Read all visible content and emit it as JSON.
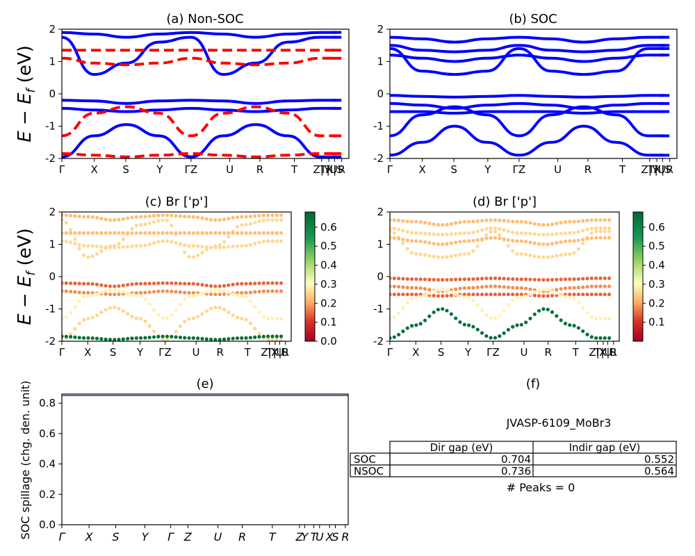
{
  "chart_data": [
    {
      "panel": "a",
      "type": "line",
      "title": "(a) Non-SOC",
      "ylabel": "E − E_f (eV)",
      "ylim": [
        -2,
        2
      ],
      "yticks": [
        -2,
        -1,
        0,
        1,
        2
      ],
      "xticks": [
        "Γ",
        "X",
        "S",
        "Y",
        "ΓZ",
        "U",
        "R",
        "T",
        "Z|Y",
        "T|U",
        "X|S",
        "R"
      ],
      "series": [
        {
          "spin": "up",
          "color": "#0000ff",
          "style": "solid",
          "x": [
            0,
            1,
            2,
            3,
            4,
            5,
            6,
            7,
            8
          ],
          "y": [
            -0.2,
            -0.22,
            -0.3,
            -0.22,
            -0.2,
            -0.22,
            -0.3,
            -0.22,
            -0.2
          ]
        },
        {
          "spin": "up",
          "color": "#0000ff",
          "style": "solid",
          "x": [
            0,
            1,
            2,
            3,
            4,
            5,
            6,
            7,
            8
          ],
          "y": [
            -0.45,
            -0.5,
            -0.55,
            -0.5,
            -0.45,
            -0.5,
            -0.55,
            -0.5,
            -0.45
          ]
        },
        {
          "spin": "up",
          "color": "#0000ff",
          "style": "solid",
          "x": [
            0,
            1,
            2,
            3,
            4,
            5,
            6,
            7,
            8
          ],
          "y": [
            -1.95,
            -1.3,
            -0.95,
            -1.3,
            -1.95,
            -1.3,
            -0.95,
            -1.3,
            -1.95
          ]
        },
        {
          "spin": "up",
          "color": "#0000ff",
          "style": "solid",
          "x": [
            0,
            1,
            2,
            3,
            4,
            5,
            6,
            7,
            8
          ],
          "y": [
            1.75,
            0.6,
            0.95,
            1.6,
            1.75,
            0.6,
            0.95,
            1.6,
            1.75
          ]
        },
        {
          "spin": "up",
          "color": "#0000ff",
          "style": "solid",
          "x": [
            0,
            1,
            2,
            3,
            4,
            5,
            6,
            7,
            8
          ],
          "y": [
            1.9,
            1.85,
            1.75,
            1.85,
            1.9,
            1.85,
            1.75,
            1.85,
            1.9
          ]
        },
        {
          "spin": "down",
          "color": "#ff0000",
          "style": "dashed",
          "x": [
            0,
            1,
            2,
            3,
            4,
            5,
            6,
            7,
            8
          ],
          "y": [
            1.1,
            0.95,
            0.9,
            0.95,
            1.1,
            0.95,
            0.9,
            0.95,
            1.1
          ]
        },
        {
          "spin": "down",
          "color": "#ff0000",
          "style": "dashed",
          "x": [
            0,
            1,
            2,
            3,
            4,
            5,
            6,
            7,
            8
          ],
          "y": [
            1.35,
            1.35,
            1.35,
            1.35,
            1.35,
            1.35,
            1.35,
            1.35,
            1.35
          ]
        },
        {
          "spin": "down",
          "color": "#ff0000",
          "style": "dashed",
          "x": [
            0,
            1,
            2,
            3,
            4,
            5,
            6,
            7,
            8
          ],
          "y": [
            -1.3,
            -0.6,
            -0.4,
            -0.6,
            -1.3,
            -0.6,
            -0.4,
            -0.6,
            -1.3
          ]
        },
        {
          "spin": "down",
          "color": "#ff0000",
          "style": "dashed",
          "x": [
            0,
            1,
            2,
            3,
            4,
            5,
            6,
            7,
            8
          ],
          "y": [
            -1.85,
            -1.9,
            -1.95,
            -1.9,
            -1.85,
            -1.9,
            -1.95,
            -1.9,
            -1.85
          ]
        }
      ]
    },
    {
      "panel": "b",
      "type": "line",
      "title": "(b) SOC",
      "ylim": [
        -2,
        2
      ],
      "yticks": [
        -2,
        -1,
        0,
        1,
        2
      ],
      "xticks": [
        "Γ",
        "X",
        "S",
        "Y",
        "ΓZ",
        "U",
        "R",
        "T",
        "Z|Y",
        "T|U",
        "X|S",
        "R"
      ],
      "series": [
        {
          "color": "#0000ff",
          "x": [
            0,
            1,
            2,
            3,
            4,
            5,
            6,
            7,
            8
          ],
          "y": [
            -0.05,
            -0.08,
            -0.1,
            -0.08,
            -0.05,
            -0.08,
            -0.1,
            -0.08,
            -0.05
          ]
        },
        {
          "color": "#0000ff",
          "x": [
            0,
            1,
            2,
            3,
            4,
            5,
            6,
            7,
            8
          ],
          "y": [
            -0.3,
            -0.35,
            -0.45,
            -0.35,
            -0.3,
            -0.35,
            -0.45,
            -0.35,
            -0.3
          ]
        },
        {
          "color": "#0000ff",
          "x": [
            0,
            1,
            2,
            3,
            4,
            5,
            6,
            7,
            8
          ],
          "y": [
            -0.55,
            -0.55,
            -0.6,
            -0.55,
            -0.55,
            -0.55,
            -0.6,
            -0.55,
            -0.55
          ]
        },
        {
          "color": "#0000ff",
          "x": [
            0,
            1,
            2,
            3,
            4,
            5,
            6,
            7,
            8
          ],
          "y": [
            -1.3,
            -0.65,
            -0.4,
            -0.65,
            -1.3,
            -0.65,
            -0.4,
            -0.65,
            -1.3
          ]
        },
        {
          "color": "#0000ff",
          "x": [
            0,
            1,
            2,
            3,
            4,
            5,
            6,
            7,
            8
          ],
          "y": [
            -1.9,
            -1.5,
            -1.0,
            -1.5,
            -1.9,
            -1.5,
            -1.0,
            -1.5,
            -1.9
          ]
        },
        {
          "color": "#0000ff",
          "x": [
            0,
            1,
            2,
            3,
            4,
            5,
            6,
            7,
            8
          ],
          "y": [
            1.4,
            0.7,
            0.6,
            0.7,
            1.4,
            0.7,
            0.6,
            0.7,
            1.4
          ]
        },
        {
          "color": "#0000ff",
          "x": [
            0,
            1,
            2,
            3,
            4,
            5,
            6,
            7,
            8
          ],
          "y": [
            1.2,
            1.1,
            1.0,
            1.1,
            1.2,
            1.1,
            1.0,
            1.1,
            1.2
          ]
        },
        {
          "color": "#0000ff",
          "x": [
            0,
            1,
            2,
            3,
            4,
            5,
            6,
            7,
            8
          ],
          "y": [
            1.5,
            1.35,
            1.3,
            1.35,
            1.5,
            1.35,
            1.3,
            1.35,
            1.5
          ]
        },
        {
          "color": "#0000ff",
          "x": [
            0,
            1,
            2,
            3,
            4,
            5,
            6,
            7,
            8
          ],
          "y": [
            1.75,
            1.7,
            1.6,
            1.7,
            1.75,
            1.7,
            1.6,
            1.7,
            1.75
          ]
        }
      ]
    },
    {
      "panel": "c",
      "type": "scatter",
      "title": "(c)  Br ['p']",
      "ylabel": "E − E_f (eV)",
      "ylim": [
        -2,
        2
      ],
      "yticks": [
        -2,
        -1,
        0,
        1,
        2
      ],
      "xticks": [
        "Γ",
        "X",
        "S",
        "Y",
        "ΓZ",
        "U",
        "R",
        "T",
        "Z|Y",
        "T|U",
        "X|S",
        "R"
      ],
      "colorbar": {
        "cmap": "RdYlGn",
        "range": [
          0.0,
          0.68
        ],
        "ticks": [
          0.0,
          0.1,
          0.2,
          0.3,
          0.4,
          0.5,
          0.6
        ]
      }
    },
    {
      "panel": "d",
      "type": "scatter",
      "title": "(d) Br ['p']",
      "ylim": [
        -2,
        2
      ],
      "yticks": [
        -2,
        -1,
        0,
        1,
        2
      ],
      "xticks": [
        "Γ",
        "X",
        "S",
        "Y",
        "ΓZ",
        "U",
        "R",
        "T",
        "Z|Y",
        "T|U",
        "X|S",
        "R"
      ],
      "colorbar": {
        "cmap": "RdYlGn",
        "range": [
          0.0,
          0.68
        ],
        "ticks": [
          0.1,
          0.2,
          0.3,
          0.4,
          0.5,
          0.6
        ]
      }
    },
    {
      "panel": "e",
      "type": "line",
      "title": "(e)",
      "ylabel": "SOC spillage (chg. den. unit)",
      "ylim": [
        0.0,
        0.86
      ],
      "yticks": [
        0.0,
        0.2,
        0.4,
        0.6,
        0.8
      ],
      "xticks": [
        "Γ",
        "X",
        "S",
        "Y",
        "Γ",
        "Z",
        "U",
        "R",
        "T",
        "Z",
        "Y",
        "T",
        "U",
        "X",
        "S",
        "R"
      ],
      "series": [
        {
          "color": "#1f4e79",
          "x": [
            0,
            1
          ],
          "y": [
            0.85,
            0.85
          ]
        }
      ]
    },
    {
      "panel": "f",
      "type": "table",
      "title": "(f)",
      "name": "JVASP-6109_MoBr3",
      "columns": [
        "Dir gap (eV)",
        "Indir gap (eV)"
      ],
      "rows": [
        {
          "label": "SOC",
          "values": [
            "0.704",
            "0.552"
          ]
        },
        {
          "label": "NSOC",
          "values": [
            "0.736",
            "0.564"
          ]
        }
      ],
      "footer": "# Peaks = 0"
    }
  ],
  "fig_text": {
    "title_a": "(a) Non-SOC",
    "title_b": "(b) SOC",
    "title_c": "(c)  Br ['p']",
    "title_d": "(d) Br ['p']",
    "title_e": "(e)",
    "title_f": "(f)",
    "ylabel_e": "SOC spillage (chg. den. unit)",
    "material": "JVASP-6109_MoBr3",
    "footer": "# Peaks = 0",
    "col_dir": "Dir gap (eV)",
    "col_indir": "Indir gap (eV)",
    "row_soc": "SOC",
    "row_nsoc": "NSOC",
    "soc_dir": "0.704",
    "soc_indir": "0.552",
    "nsoc_dir": "0.736",
    "nsoc_indir": "0.564"
  }
}
